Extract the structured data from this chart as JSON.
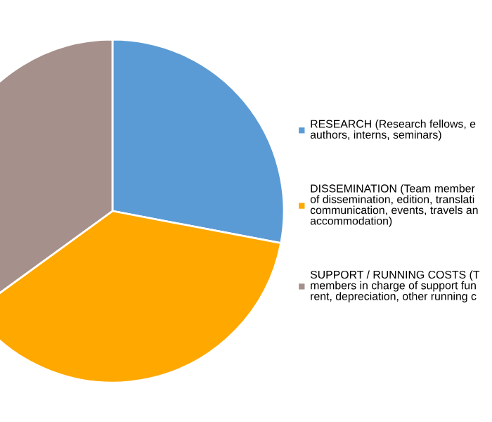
{
  "chart_data": {
    "type": "pie",
    "categories": [
      "RESEARCH (Research fellows, e\nauthors, interns, seminars)",
      "DISSEMINATION (Team member\nof dissemination, edition, translati\ncommunication, events, travels an\naccommodation)",
      "SUPPORT / RUNNING COSTS (T\nmembers in charge of support fun\nrent, depreciation, other running c"
    ],
    "values": [
      28,
      37,
      35
    ],
    "colors": [
      "#5b9bd5",
      "#ffa800",
      "#a5908b"
    ],
    "legend": "right"
  }
}
